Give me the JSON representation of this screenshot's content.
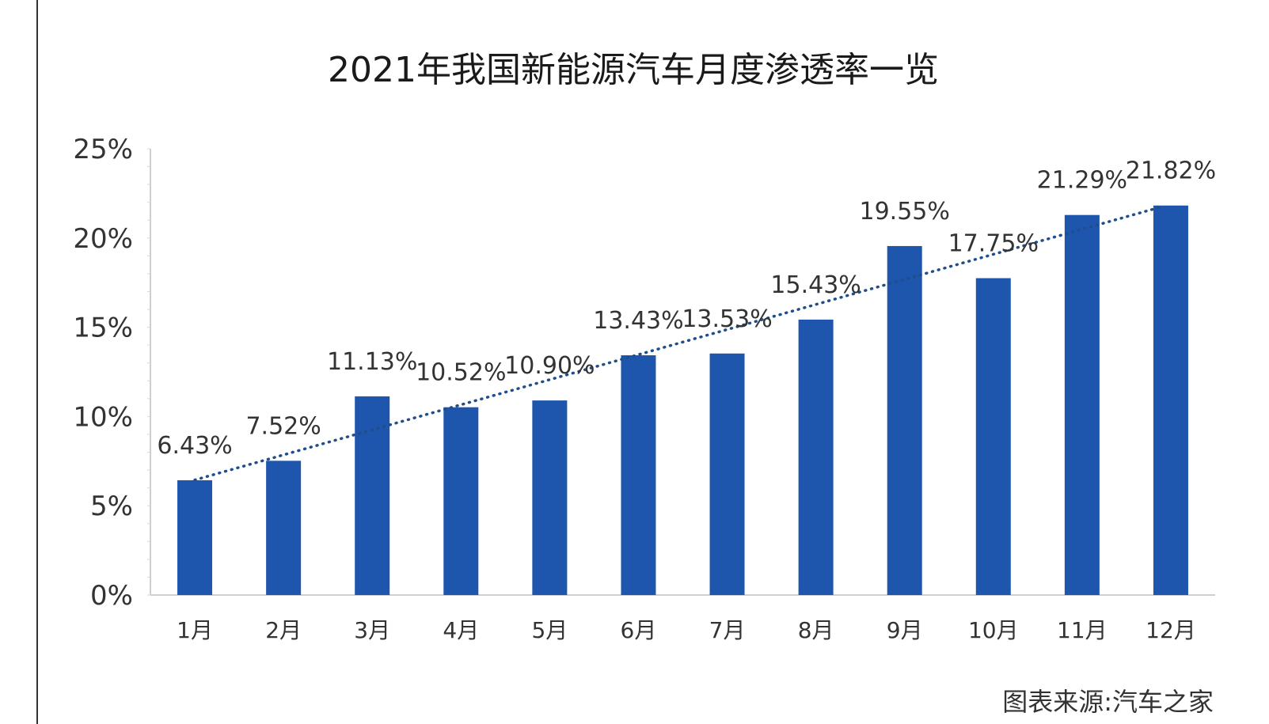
{
  "chart_data": {
    "type": "bar",
    "title": "2021年我国新能源汽车月度渗透率一览",
    "categories": [
      "1月",
      "2月",
      "3月",
      "4月",
      "5月",
      "6月",
      "7月",
      "8月",
      "9月",
      "10月",
      "11月",
      "12月"
    ],
    "values": [
      6.43,
      7.52,
      11.13,
      10.52,
      10.9,
      13.43,
      13.53,
      15.43,
      19.55,
      17.75,
      21.29,
      21.82
    ],
    "data_labels": [
      "6.43%",
      "7.52%",
      "11.13%",
      "10.52%",
      "10.90%",
      "13.43%",
      "13.53%",
      "15.43%",
      "19.55%",
      "17.75%",
      "21.29%",
      "21.82%"
    ],
    "yticks": [
      "0%",
      "5%",
      "10%",
      "15%",
      "20%",
      "25%"
    ],
    "ylim": [
      0,
      25
    ],
    "xlabel": "",
    "ylabel": "",
    "grid": false,
    "trendline": true,
    "colors": {
      "bar": "#1f56ad",
      "trend": "#1f4e8c"
    }
  },
  "source_note": "图表来源:汽车之家"
}
